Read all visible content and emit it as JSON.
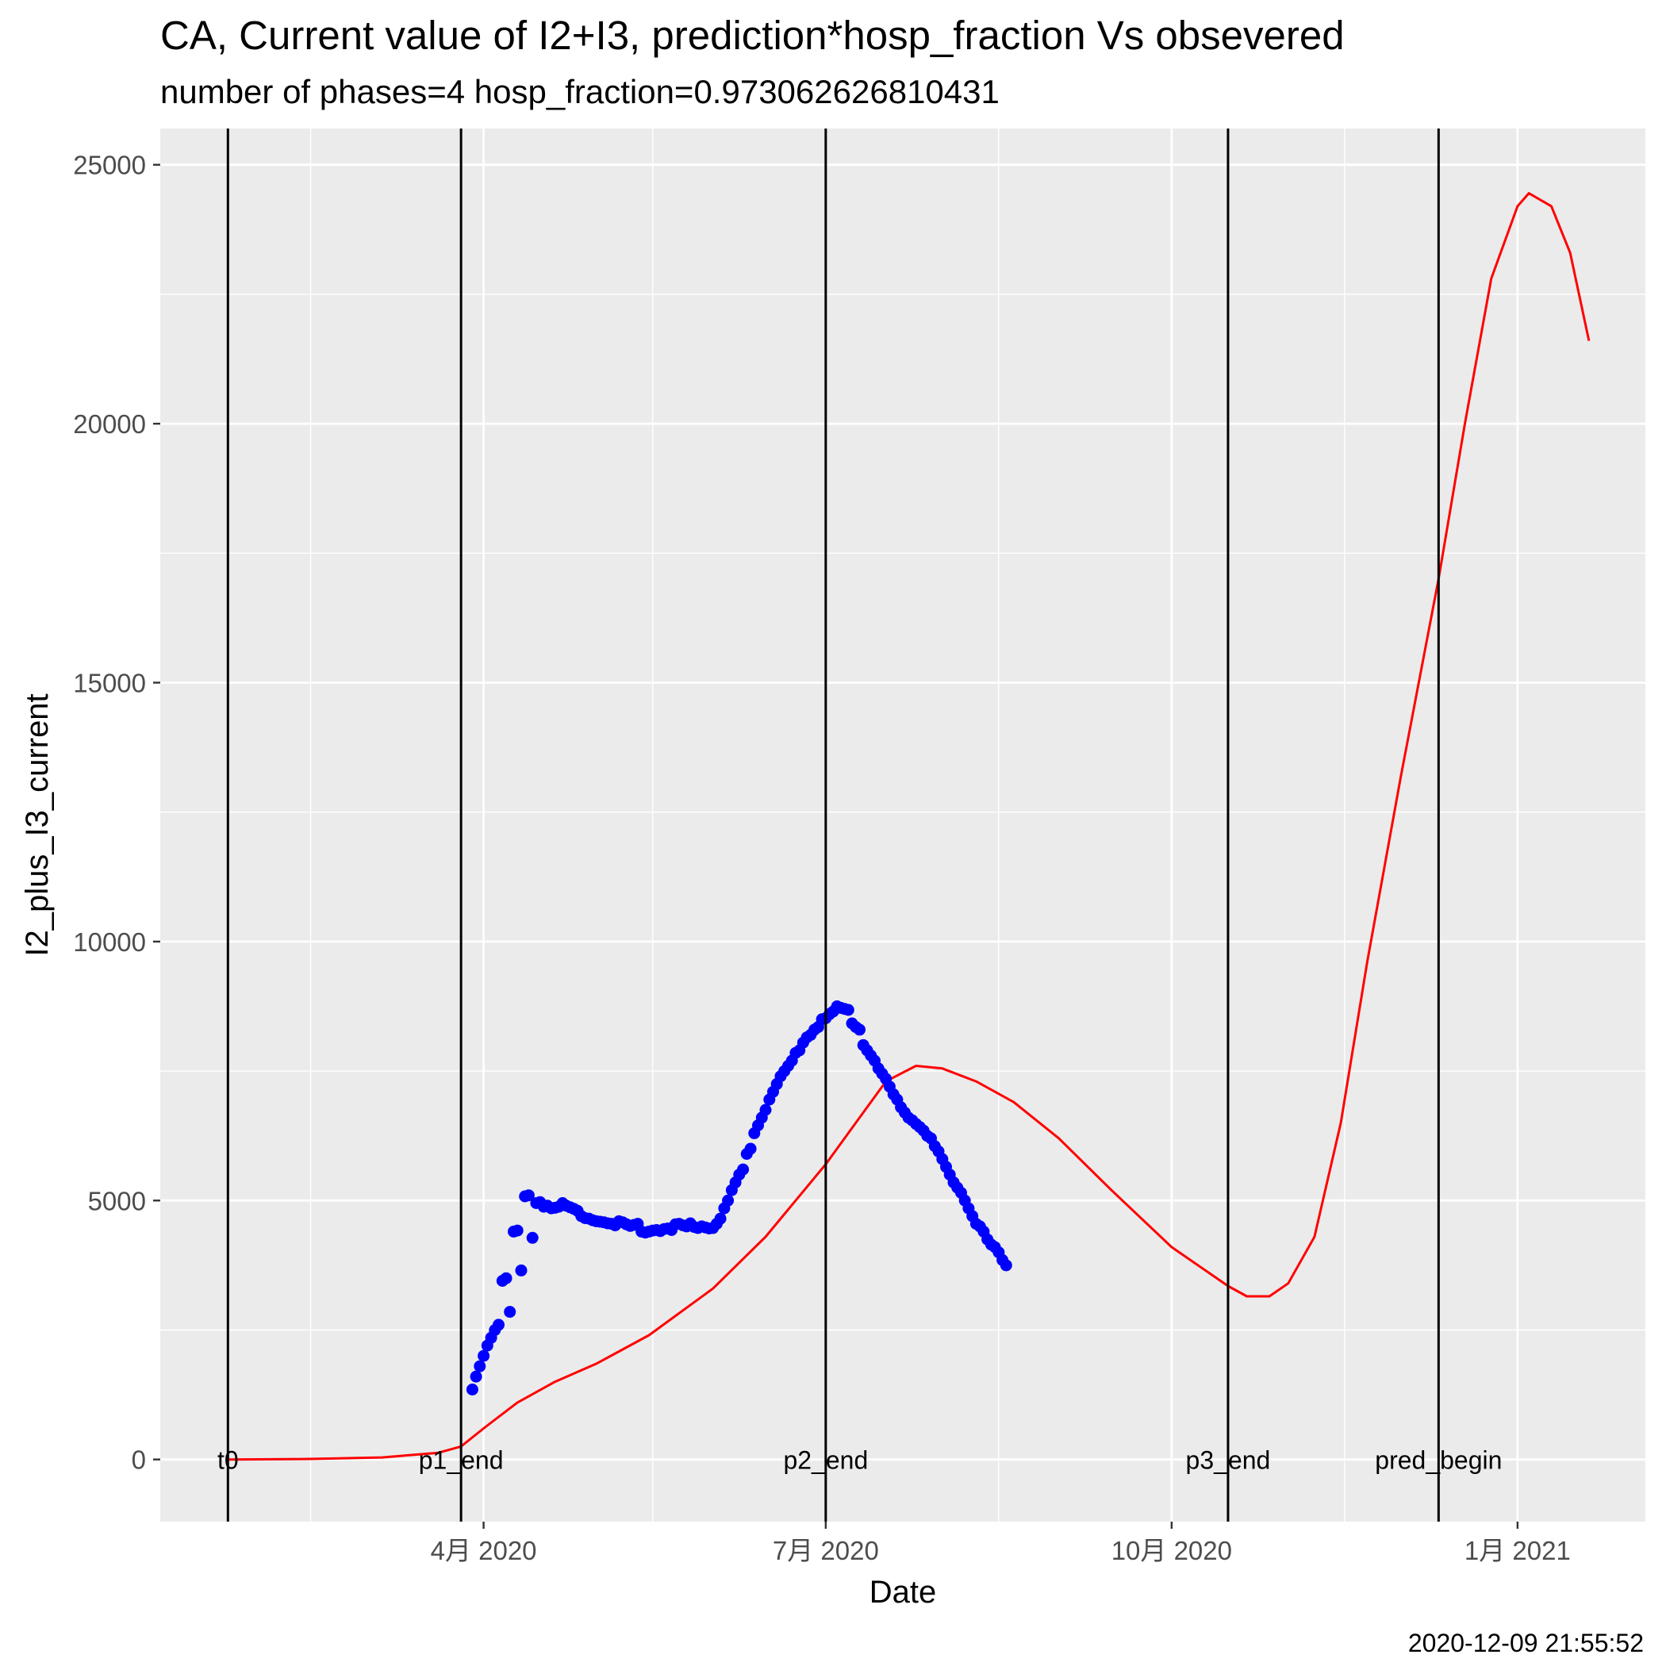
{
  "chart_data": {
    "type": "line",
    "title": "CA, Current value of I2+I3, prediction*hosp_fraction Vs obsevered",
    "subtitle": "number of phases=4   hosp_fraction=0.973062626810431",
    "xlabel": "Date",
    "ylabel": "I2_plus_I3_current",
    "caption": "2020-12-09 21:55:52",
    "x_range": [
      "2020-01-06",
      "2021-02-04"
    ],
    "ylim": [
      -1200,
      25700
    ],
    "y_ticks": [
      0,
      5000,
      10000,
      15000,
      20000,
      25000
    ],
    "y_tick_labels": [
      "0",
      "5000",
      "10000",
      "15000",
      "20000",
      "25000"
    ],
    "x_ticks": [
      "2020-04-01",
      "2020-07-01",
      "2020-10-01",
      "2021-01-01"
    ],
    "x_tick_labels": [
      "4月 2020",
      "7月 2020",
      "10月 2020",
      "1月 2021"
    ],
    "x_minor_ticks": [
      "2020-02-15",
      "2020-05-16",
      "2020-08-16",
      "2020-11-16"
    ],
    "grid": true,
    "colors": {
      "panel": "#ebebeb",
      "grid": "#ffffff",
      "predicted": "#ff0000",
      "observed": "#0000ff",
      "vline": "#000000"
    },
    "vlines": [
      {
        "date": "2020-01-24",
        "label": "t0"
      },
      {
        "date": "2020-03-26",
        "label": "p1_end"
      },
      {
        "date": "2020-07-01",
        "label": "p2_end"
      },
      {
        "date": "2020-10-16",
        "label": "p3_end"
      },
      {
        "date": "2020-12-11",
        "label": "pred_begin"
      }
    ],
    "series": [
      {
        "kind": "line",
        "points": [
          [
            "2020-01-24",
            0
          ],
          [
            "2020-02-15",
            10
          ],
          [
            "2020-03-05",
            40
          ],
          [
            "2020-03-20",
            130
          ],
          [
            "2020-03-26",
            250
          ],
          [
            "2020-04-01",
            600
          ],
          [
            "2020-04-10",
            1100
          ],
          [
            "2020-04-20",
            1500
          ],
          [
            "2020-05-01",
            1850
          ],
          [
            "2020-05-15",
            2400
          ],
          [
            "2020-06-01",
            3300
          ],
          [
            "2020-06-15",
            4300
          ],
          [
            "2020-07-01",
            5700
          ],
          [
            "2020-07-10",
            6600
          ],
          [
            "2020-07-17",
            7300
          ],
          [
            "2020-07-25",
            7600
          ],
          [
            "2020-08-01",
            7550
          ],
          [
            "2020-08-10",
            7300
          ],
          [
            "2020-08-20",
            6900
          ],
          [
            "2020-09-01",
            6200
          ],
          [
            "2020-09-15",
            5200
          ],
          [
            "2020-10-01",
            4100
          ],
          [
            "2020-10-16",
            3350
          ],
          [
            "2020-10-21",
            3150
          ],
          [
            "2020-10-27",
            3150
          ],
          [
            "2020-11-01",
            3400
          ],
          [
            "2020-11-08",
            4300
          ],
          [
            "2020-11-15",
            6500
          ],
          [
            "2020-11-22",
            9600
          ],
          [
            "2020-12-01",
            13200
          ],
          [
            "2020-12-11",
            17000
          ],
          [
            "2020-12-18",
            20000
          ],
          [
            "2020-12-25",
            22800
          ],
          [
            "2021-01-01",
            24200
          ],
          [
            "2021-01-04",
            24450
          ],
          [
            "2021-01-10",
            24200
          ],
          [
            "2021-01-15",
            23300
          ],
          [
            "2021-01-20",
            21600
          ]
        ]
      },
      {
        "kind": "scatter",
        "points": [
          [
            "2020-03-29",
            1350
          ],
          [
            "2020-03-30",
            1600
          ],
          [
            "2020-03-31",
            1800
          ],
          [
            "2020-04-01",
            2000
          ],
          [
            "2020-04-02",
            2200
          ],
          [
            "2020-04-03",
            2350
          ],
          [
            "2020-04-04",
            2500
          ],
          [
            "2020-04-05",
            2600
          ],
          [
            "2020-04-06",
            3450
          ],
          [
            "2020-04-07",
            3500
          ],
          [
            "2020-04-08",
            2850
          ],
          [
            "2020-04-09",
            4400
          ],
          [
            "2020-04-10",
            4420
          ],
          [
            "2020-04-11",
            3650
          ],
          [
            "2020-04-12",
            5080
          ],
          [
            "2020-04-13",
            5100
          ],
          [
            "2020-04-14",
            4280
          ],
          [
            "2020-04-15",
            4950
          ],
          [
            "2020-04-16",
            4970
          ],
          [
            "2020-04-17",
            4880
          ],
          [
            "2020-04-18",
            4900
          ],
          [
            "2020-04-19",
            4850
          ],
          [
            "2020-04-20",
            4860
          ],
          [
            "2020-04-21",
            4880
          ],
          [
            "2020-04-22",
            4950
          ],
          [
            "2020-04-23",
            4900
          ],
          [
            "2020-04-24",
            4870
          ],
          [
            "2020-04-25",
            4840
          ],
          [
            "2020-04-26",
            4800
          ],
          [
            "2020-04-27",
            4700
          ],
          [
            "2020-04-28",
            4660
          ],
          [
            "2020-04-29",
            4650
          ],
          [
            "2020-04-30",
            4620
          ],
          [
            "2020-05-01",
            4600
          ],
          [
            "2020-05-02",
            4590
          ],
          [
            "2020-05-03",
            4580
          ],
          [
            "2020-05-04",
            4560
          ],
          [
            "2020-05-05",
            4550
          ],
          [
            "2020-05-06",
            4520
          ],
          [
            "2020-05-07",
            4600
          ],
          [
            "2020-05-08",
            4580
          ],
          [
            "2020-05-09",
            4540
          ],
          [
            "2020-05-10",
            4510
          ],
          [
            "2020-05-11",
            4530
          ],
          [
            "2020-05-12",
            4550
          ],
          [
            "2020-05-13",
            4400
          ],
          [
            "2020-05-14",
            4380
          ],
          [
            "2020-05-15",
            4400
          ],
          [
            "2020-05-16",
            4420
          ],
          [
            "2020-05-17",
            4430
          ],
          [
            "2020-05-18",
            4410
          ],
          [
            "2020-05-19",
            4450
          ],
          [
            "2020-05-20",
            4460
          ],
          [
            "2020-05-21",
            4430
          ],
          [
            "2020-05-22",
            4540
          ],
          [
            "2020-05-23",
            4550
          ],
          [
            "2020-05-24",
            4520
          ],
          [
            "2020-05-25",
            4500
          ],
          [
            "2020-05-26",
            4560
          ],
          [
            "2020-05-27",
            4490
          ],
          [
            "2020-05-28",
            4470
          ],
          [
            "2020-05-29",
            4500
          ],
          [
            "2020-05-30",
            4480
          ],
          [
            "2020-05-31",
            4460
          ],
          [
            "2020-06-01",
            4470
          ],
          [
            "2020-06-02",
            4550
          ],
          [
            "2020-06-03",
            4650
          ],
          [
            "2020-06-04",
            4850
          ],
          [
            "2020-06-05",
            5000
          ],
          [
            "2020-06-06",
            5200
          ],
          [
            "2020-06-07",
            5350
          ],
          [
            "2020-06-08",
            5500
          ],
          [
            "2020-06-09",
            5600
          ],
          [
            "2020-06-10",
            5900
          ],
          [
            "2020-06-11",
            6000
          ],
          [
            "2020-06-12",
            6300
          ],
          [
            "2020-06-13",
            6450
          ],
          [
            "2020-06-14",
            6600
          ],
          [
            "2020-06-15",
            6750
          ],
          [
            "2020-06-16",
            6950
          ],
          [
            "2020-06-17",
            7100
          ],
          [
            "2020-06-18",
            7250
          ],
          [
            "2020-06-19",
            7400
          ],
          [
            "2020-06-20",
            7500
          ],
          [
            "2020-06-21",
            7600
          ],
          [
            "2020-06-22",
            7700
          ],
          [
            "2020-06-23",
            7850
          ],
          [
            "2020-06-24",
            7900
          ],
          [
            "2020-06-25",
            8050
          ],
          [
            "2020-06-26",
            8150
          ],
          [
            "2020-06-27",
            8200
          ],
          [
            "2020-06-28",
            8300
          ],
          [
            "2020-06-29",
            8350
          ],
          [
            "2020-06-30",
            8500
          ],
          [
            "2020-07-01",
            8520
          ],
          [
            "2020-07-02",
            8600
          ],
          [
            "2020-07-03",
            8650
          ],
          [
            "2020-07-04",
            8750
          ],
          [
            "2020-07-05",
            8720
          ],
          [
            "2020-07-06",
            8700
          ],
          [
            "2020-07-07",
            8680
          ],
          [
            "2020-07-08",
            8420
          ],
          [
            "2020-07-09",
            8350
          ],
          [
            "2020-07-10",
            8300
          ],
          [
            "2020-07-11",
            8000
          ],
          [
            "2020-07-12",
            7900
          ],
          [
            "2020-07-13",
            7800
          ],
          [
            "2020-07-14",
            7700
          ],
          [
            "2020-07-15",
            7550
          ],
          [
            "2020-07-16",
            7450
          ],
          [
            "2020-07-17",
            7350
          ],
          [
            "2020-07-18",
            7200
          ],
          [
            "2020-07-19",
            7050
          ],
          [
            "2020-07-20",
            6950
          ],
          [
            "2020-07-21",
            6800
          ],
          [
            "2020-07-22",
            6700
          ],
          [
            "2020-07-23",
            6600
          ],
          [
            "2020-07-24",
            6550
          ],
          [
            "2020-07-25",
            6480
          ],
          [
            "2020-07-26",
            6420
          ],
          [
            "2020-07-27",
            6350
          ],
          [
            "2020-07-28",
            6250
          ],
          [
            "2020-07-29",
            6200
          ],
          [
            "2020-07-30",
            6050
          ],
          [
            "2020-07-31",
            5950
          ],
          [
            "2020-08-01",
            5800
          ],
          [
            "2020-08-02",
            5650
          ],
          [
            "2020-08-03",
            5500
          ],
          [
            "2020-08-04",
            5350
          ],
          [
            "2020-08-05",
            5250
          ],
          [
            "2020-08-06",
            5150
          ],
          [
            "2020-08-07",
            5000
          ],
          [
            "2020-08-08",
            4850
          ],
          [
            "2020-08-09",
            4700
          ],
          [
            "2020-08-10",
            4550
          ],
          [
            "2020-08-11",
            4500
          ],
          [
            "2020-08-12",
            4400
          ],
          [
            "2020-08-13",
            4250
          ],
          [
            "2020-08-14",
            4150
          ],
          [
            "2020-08-15",
            4100
          ],
          [
            "2020-08-16",
            4000
          ],
          [
            "2020-08-17",
            3850
          ],
          [
            "2020-08-18",
            3750
          ]
        ]
      }
    ]
  }
}
